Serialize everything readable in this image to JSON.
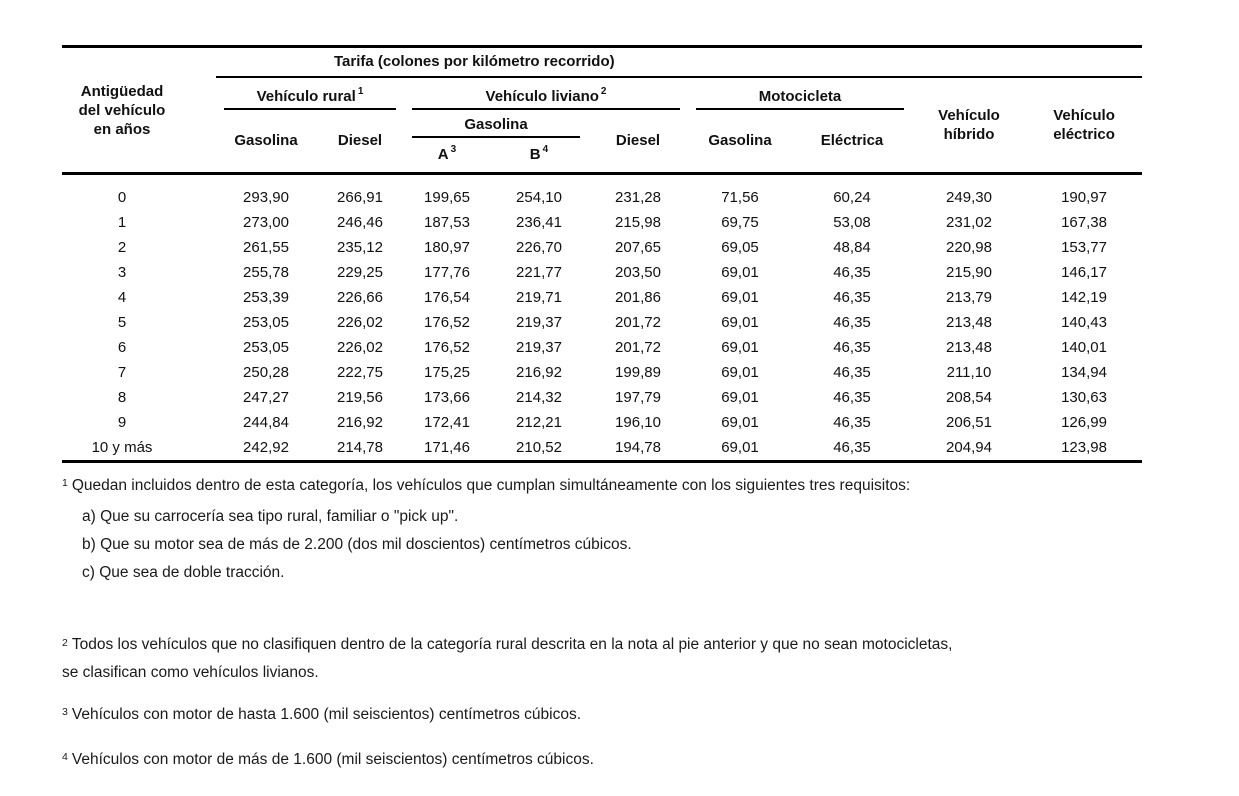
{
  "table": {
    "title": "Tarifa (colones por kilómetro recorrido)",
    "age_header_lines": [
      "Antigüedad",
      "del vehículo",
      "en años"
    ],
    "groups": {
      "rural": {
        "label": "Vehículo rural",
        "sup": "1"
      },
      "liviano": {
        "label": "Vehículo liviano",
        "sup": "2"
      },
      "moto": {
        "label": "Motocicleta"
      },
      "hibrido": {
        "lines": [
          "Vehículo",
          "híbrido"
        ]
      },
      "electrico": {
        "lines": [
          "Vehículo",
          "eléctrico"
        ]
      }
    },
    "sub": {
      "rural_gasolina": "Gasolina",
      "rural_diesel": "Diesel",
      "liviano_gasolina": "Gasolina",
      "liviano_diesel": "Diesel",
      "moto_gasolina": "Gasolina",
      "moto_electrica": "Eléctrica",
      "a": {
        "label": "A",
        "sup": "3"
      },
      "b": {
        "label": "B",
        "sup": "4"
      }
    },
    "rows": [
      {
        "age": "0",
        "values": [
          "293,90",
          "266,91",
          "199,65",
          "254,10",
          "231,28",
          "71,56",
          "60,24",
          "249,30",
          "190,97"
        ]
      },
      {
        "age": "1",
        "values": [
          "273,00",
          "246,46",
          "187,53",
          "236,41",
          "215,98",
          "69,75",
          "53,08",
          "231,02",
          "167,38"
        ]
      },
      {
        "age": "2",
        "values": [
          "261,55",
          "235,12",
          "180,97",
          "226,70",
          "207,65",
          "69,05",
          "48,84",
          "220,98",
          "153,77"
        ]
      },
      {
        "age": "3",
        "values": [
          "255,78",
          "229,25",
          "177,76",
          "221,77",
          "203,50",
          "69,01",
          "46,35",
          "215,90",
          "146,17"
        ]
      },
      {
        "age": "4",
        "values": [
          "253,39",
          "226,66",
          "176,54",
          "219,71",
          "201,86",
          "69,01",
          "46,35",
          "213,79",
          "142,19"
        ]
      },
      {
        "age": "5",
        "values": [
          "253,05",
          "226,02",
          "176,52",
          "219,37",
          "201,72",
          "69,01",
          "46,35",
          "213,48",
          "140,43"
        ]
      },
      {
        "age": "6",
        "values": [
          "253,05",
          "226,02",
          "176,52",
          "219,37",
          "201,72",
          "69,01",
          "46,35",
          "213,48",
          "140,01"
        ]
      },
      {
        "age": "7",
        "values": [
          "250,28",
          "222,75",
          "175,25",
          "216,92",
          "199,89",
          "69,01",
          "46,35",
          "211,10",
          "134,94"
        ]
      },
      {
        "age": "8",
        "values": [
          "247,27",
          "219,56",
          "173,66",
          "214,32",
          "197,79",
          "69,01",
          "46,35",
          "208,54",
          "130,63"
        ]
      },
      {
        "age": "9",
        "values": [
          "244,84",
          "216,92",
          "172,41",
          "212,21",
          "196,10",
          "69,01",
          "46,35",
          "206,51",
          "126,99"
        ]
      },
      {
        "age": "10 y más",
        "values": [
          "242,92",
          "214,78",
          "171,46",
          "210,52",
          "194,78",
          "69,01",
          "46,35",
          "204,94",
          "123,98"
        ]
      }
    ]
  },
  "footnotes": {
    "fn1": {
      "sup": "1",
      "text": "Quedan incluidos dentro de esta categoría, los vehículos que cumplan simultáneamente con los siguientes tres requisitos:",
      "items": [
        "a) Que su carrocería sea tipo rural, familiar o \"pick up\".",
        "b) Que su motor sea de más de 2.200 (dos mil doscientos) centímetros cúbicos.",
        "c)  Que sea de doble tracción."
      ]
    },
    "fn2": {
      "sup": "2",
      "text": "Todos los vehículos que no clasifiquen dentro de la categoría rural descrita en la nota al pie anterior y que no sean motocicletas, se clasifican como vehículos livianos."
    },
    "fn3": {
      "sup": "3",
      "text": "Vehículos con motor de hasta 1.600 (mil seiscientos) centímetros cúbicos."
    },
    "fn4": {
      "sup": "4",
      "text": "Vehículos con motor de más de 1.600 (mil seiscientos) centímetros cúbicos."
    }
  }
}
